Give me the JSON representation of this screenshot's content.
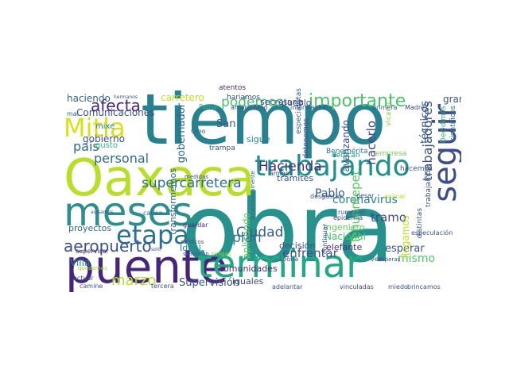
{
  "word_cloud": {
    "words": [
      {
        "text": "obra",
        "color": "#27918c"
      },
      {
        "text": "tiempo",
        "color": "#27818e"
      },
      {
        "text": "Oaxaca",
        "color": "#b8de29"
      },
      {
        "text": "puente",
        "color": "#46267a"
      },
      {
        "text": "terminar",
        "color": "#22a884"
      },
      {
        "text": "meses",
        "color": "#2d8f8c"
      },
      {
        "text": "seguir",
        "color": "#3d4d8a"
      },
      {
        "text": "trabajando",
        "color": "#21908d"
      },
      {
        "text": "etapa",
        "color": "#2c718e"
      },
      {
        "text": "Mitla",
        "color": "#d8e219"
      },
      {
        "text": "importante",
        "color": "#4ac16d"
      },
      {
        "text": "aeropuerto",
        "color": "#3a548c"
      },
      {
        "text": "Hacienda",
        "color": "#46307e"
      },
      {
        "text": "supercarretera",
        "color": "#2e6f8e"
      },
      {
        "text": "afecta",
        "color": "#482677"
      },
      {
        "text": "podemos",
        "color": "#4ac16d"
      },
      {
        "text": "país",
        "color": "#31688e"
      },
      {
        "text": "trabajadores",
        "color": "#3b528b"
      },
      {
        "text": "coronavirus",
        "color": "#27808e"
      },
      {
        "text": "Ciudad",
        "color": "#34608d"
      },
      {
        "text": "marzo",
        "color": "#b5de2b"
      },
      {
        "text": "plan",
        "color": "#2c728e"
      },
      {
        "text": "enfrentar",
        "color": "#3b528b"
      },
      {
        "text": "esperar",
        "color": "#3b528b"
      },
      {
        "text": "mismo",
        "color": "#56c667"
      },
      {
        "text": "personal",
        "color": "#2f6c8e"
      },
      {
        "text": "técnicos",
        "color": "#375b8d"
      },
      {
        "text": "tramo",
        "color": "#3f4889"
      },
      {
        "text": "Supervisión",
        "color": "#3a538b"
      },
      {
        "text": "gobernador",
        "color": "#31688e"
      },
      {
        "text": "Pablo",
        "color": "#33628d"
      },
      {
        "text": "San",
        "color": "#375b8d"
      },
      {
        "text": "hacerlo",
        "color": "#3f4889"
      },
      {
        "text": "Villa",
        "color": "#25838e"
      },
      {
        "text": "carretero",
        "color": "#c2df23"
      },
      {
        "text": "gobierno",
        "color": "#3b528b"
      },
      {
        "text": "avanzando",
        "color": "#3e4a89"
      },
      {
        "text": "haciendo",
        "color": "#33638d"
      },
      {
        "text": "Tehuantepec",
        "color": "#5ec962"
      },
      {
        "text": "proyectos",
        "color": "#31688e"
      },
      {
        "text": "Comunicaciones",
        "color": "#3c508b"
      },
      {
        "text": "Ideal",
        "color": "#26818e"
      },
      {
        "text": "aplicando",
        "color": "#5ec962"
      },
      {
        "text": "secretaría",
        "color": "#3f4788"
      },
      {
        "text": "Nacional",
        "color": "#46c06f"
      },
      {
        "text": "llegamos",
        "color": "#c5e021"
      },
      {
        "text": "sigue",
        "color": "#25848e"
      },
      {
        "text": "pueblo",
        "color": "#3b528b"
      },
      {
        "text": "comunidades",
        "color": "#472c7a"
      },
      {
        "text": "iguales",
        "color": "#3f4889"
      },
      {
        "text": "trámites",
        "color": "#38598c"
      },
      {
        "text": "decisión",
        "color": "#3b528b"
      },
      {
        "text": "ingeniero",
        "color": "#65cb5e"
      },
      {
        "text": "elefante",
        "color": "#472d7b"
      },
      {
        "text": "transformemos",
        "color": "#31688e"
      },
      {
        "text": "mixe",
        "color": "#25848e"
      },
      {
        "text": "gusto",
        "color": "#35b779"
      },
      {
        "text": "grande",
        "color": "#3b528b"
      },
      {
        "text": "atentos",
        "color": "#472c7a"
      },
      {
        "text": "hariamos",
        "color": "#3e4a89"
      },
      {
        "text": "especialistas",
        "color": "#33628d"
      },
      {
        "text": "detenemos",
        "color": "#3f4889"
      },
      {
        "text": "dedican",
        "color": "#1e9c89"
      },
      {
        "text": "empresa",
        "color": "#73d056"
      },
      {
        "text": "hacemos",
        "color": "#39558c"
      },
      {
        "text": "distintas",
        "color": "#3b528b"
      },
      {
        "text": "trabajamos",
        "color": "#3b528b"
      },
      {
        "text": "Benemérita",
        "color": "#2a768e"
      },
      {
        "text": "vicario",
        "color": "#8fd744"
      },
      {
        "text": "Decidimos",
        "color": "#35b779"
      },
      {
        "text": "científicos",
        "color": "#2c718e"
      },
      {
        "text": "amarillismo",
        "color": "#3b528b"
      },
      {
        "text": "información",
        "color": "#39558c"
      },
      {
        "text": "primera",
        "color": "#31688e"
      },
      {
        "text": "Madre",
        "color": "#404387"
      },
      {
        "text": "trampa",
        "color": "#3b528b"
      },
      {
        "text": "Creo",
        "color": "#31688e"
      },
      {
        "text": "Patria",
        "color": "#35b779"
      },
      {
        "text": "medidas",
        "color": "#3b528b"
      },
      {
        "text": "supervisar",
        "color": "#482878"
      },
      {
        "text": "mal",
        "color": "#31688e"
      },
      {
        "text": "quedamos",
        "color": "#a0da39"
      },
      {
        "text": "amigos",
        "color": "#3b528b"
      },
      {
        "text": "desgastar",
        "color": "#3b528b"
      },
      {
        "text": "pesar",
        "color": "#3b528b"
      },
      {
        "text": "aplicar",
        "color": "#b5de2b"
      },
      {
        "text": "rumores",
        "color": "#3b528b"
      },
      {
        "text": "epidemia",
        "color": "#3b528b"
      },
      {
        "text": "especulación",
        "color": "#3b528b"
      },
      {
        "text": "continuar",
        "color": "#3b528b"
      },
      {
        "text": "económicamente",
        "color": "#31688e"
      },
      {
        "text": "calma",
        "color": "#2c728e"
      },
      {
        "text": "guardar",
        "color": "#482878"
      },
      {
        "text": "médicos",
        "color": "#3b528b"
      },
      {
        "text": "siembran",
        "color": "#3b528b"
      },
      {
        "text": "amigas",
        "color": "#8fd744"
      },
      {
        "text": "Leona",
        "color": "#3b528b"
      },
      {
        "text": "vez",
        "color": "#3b528b"
      },
      {
        "text": "actuar",
        "color": "#3b528b"
      },
      {
        "text": "miedo",
        "color": "#3b528b"
      },
      {
        "text": "brincamos",
        "color": "#3b528b"
      },
      {
        "text": "vinculadas",
        "color": "#3b528b"
      },
      {
        "text": "adelantar",
        "color": "#3b528b"
      },
      {
        "text": "tercera",
        "color": "#3b528b"
      },
      {
        "text": "camine",
        "color": "#3b528b"
      },
      {
        "text": "solo",
        "color": "#3b528b"
      },
      {
        "text": "hermanos",
        "color": "#3b528b"
      },
      {
        "text": "avisamos",
        "color": "#3b528b"
      },
      {
        "text": "visperas",
        "color": "#3b528b"
      }
    ]
  }
}
